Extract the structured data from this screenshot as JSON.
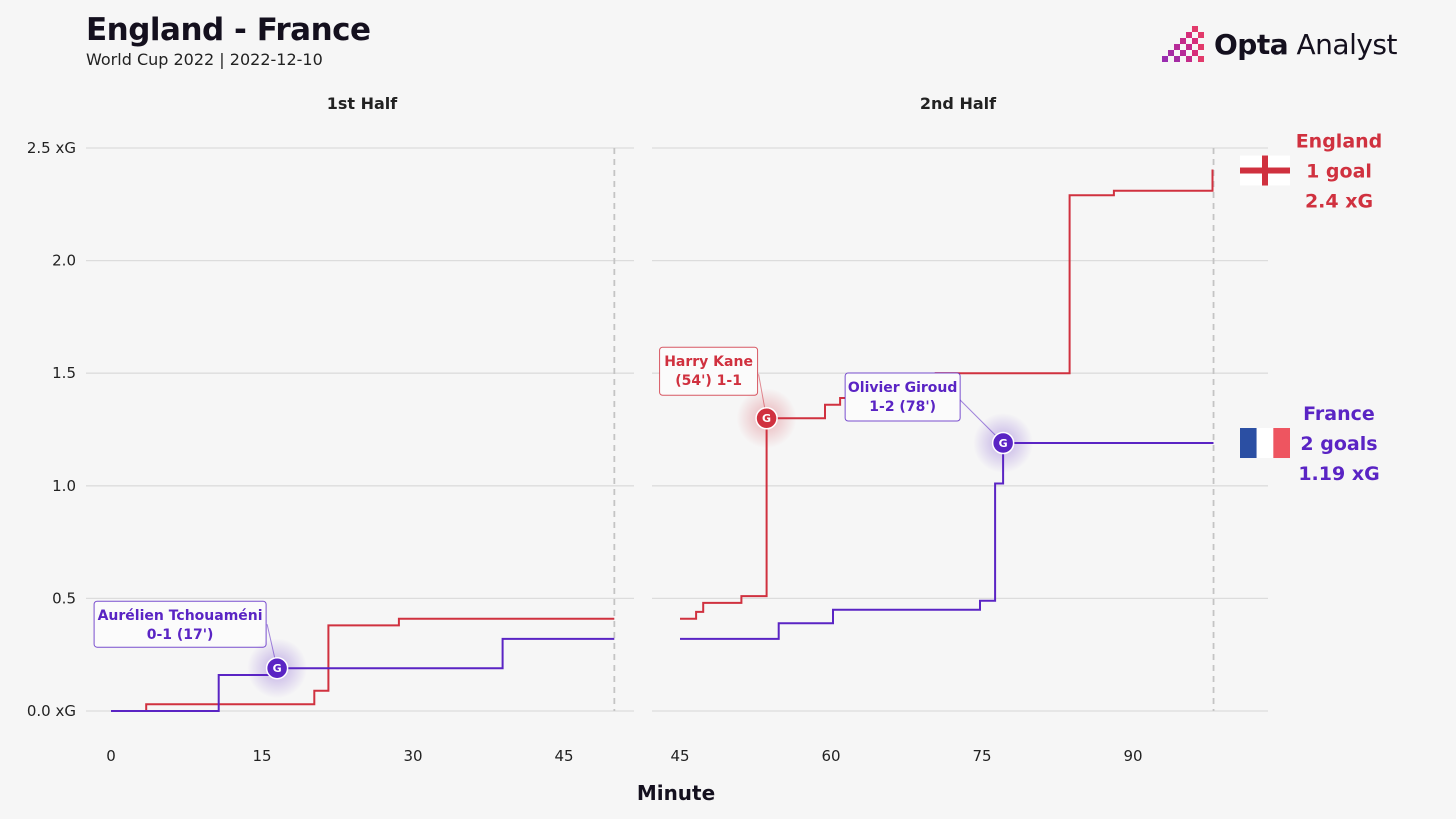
{
  "header": {
    "title": "England - France",
    "subtitle": "World Cup 2022 | 2022-12-10",
    "brand_bold": "Opta",
    "brand_light": " Analyst"
  },
  "colors": {
    "england": "#d0313f",
    "france": "#5a24c4",
    "grid": "#dcdcdc",
    "flag_blue": "#2b4fa3",
    "flag_red": "#ee5560"
  },
  "chart_data": {
    "type": "line",
    "title": "England - France",
    "subtitle": "World Cup 2022 | 2022-12-10",
    "xlabel": "Minute",
    "ylabel": "",
    "ylim": [
      0,
      2.5
    ],
    "y_ticks": [
      {
        "value": 0,
        "label": "0.0 xG"
      },
      {
        "value": 0.5,
        "label": "0.5"
      },
      {
        "value": 1,
        "label": "1.0"
      },
      {
        "value": 1.5,
        "label": "1.5"
      },
      {
        "value": 2,
        "label": "2.0"
      },
      {
        "value": 2.5,
        "label": "2.5 xG"
      }
    ],
    "grid": true,
    "panels": [
      {
        "key": "first",
        "label": "1st Half",
        "xlim": [
          0,
          50
        ],
        "x_ticks": [
          0,
          15,
          30,
          45
        ],
        "end_minute": 50
      },
      {
        "key": "second",
        "label": "2nd Half",
        "xlim": [
          45,
          99
        ],
        "x_ticks": [
          45,
          60,
          75,
          90
        ],
        "end_minute": 98
      }
    ],
    "series": [
      {
        "name": "England",
        "team": "england",
        "goals_label": "1 goal",
        "xg_label": "2.4 xG",
        "first": [
          [
            0,
            0
          ],
          [
            3.5,
            0
          ],
          [
            3.5,
            0.03
          ],
          [
            20.2,
            0.03
          ],
          [
            20.2,
            0.09
          ],
          [
            21.6,
            0.09
          ],
          [
            21.6,
            0.38
          ],
          [
            28.6,
            0.38
          ],
          [
            28.6,
            0.41
          ],
          [
            50,
            0.41
          ]
        ],
        "second": [
          [
            45,
            0.41
          ],
          [
            46.6,
            0.41
          ],
          [
            46.6,
            0.44
          ],
          [
            47.3,
            0.44
          ],
          [
            47.3,
            0.48
          ],
          [
            51.1,
            0.48
          ],
          [
            51.1,
            0.51
          ],
          [
            53.6,
            0.51
          ],
          [
            53.6,
            1.3
          ],
          [
            54.1,
            1.3
          ],
          [
            54.1,
            1.3
          ],
          [
            59.4,
            1.3
          ],
          [
            59.4,
            1.36
          ],
          [
            60.9,
            1.36
          ],
          [
            60.9,
            1.39
          ],
          [
            70.4,
            1.39
          ],
          [
            70.4,
            1.5
          ],
          [
            83.7,
            1.5
          ],
          [
            83.7,
            2.29
          ],
          [
            88.1,
            2.29
          ],
          [
            88.1,
            2.31
          ],
          [
            97.9,
            2.31
          ],
          [
            97.9,
            2.4
          ],
          [
            98,
            2.4
          ]
        ]
      },
      {
        "name": "France",
        "team": "france",
        "goals_label": "2 goals",
        "xg_label": "1.19 xG",
        "first": [
          [
            0,
            0
          ],
          [
            10.7,
            0
          ],
          [
            10.7,
            0.16
          ],
          [
            16.5,
            0.16
          ],
          [
            16.5,
            0.19
          ],
          [
            38.9,
            0.19
          ],
          [
            38.9,
            0.32
          ],
          [
            50,
            0.32
          ]
        ],
        "second": [
          [
            45,
            0.32
          ],
          [
            54.8,
            0.32
          ],
          [
            54.8,
            0.39
          ],
          [
            60.2,
            0.39
          ],
          [
            60.2,
            0.45
          ],
          [
            74.8,
            0.45
          ],
          [
            74.8,
            0.49
          ],
          [
            76.3,
            0.49
          ],
          [
            76.3,
            1.01
          ],
          [
            77.1,
            1.01
          ],
          [
            77.1,
            1.19
          ],
          [
            98,
            1.19
          ]
        ]
      }
    ],
    "goals": [
      {
        "team": "france",
        "panel": "first",
        "minute": 16.5,
        "xg": 0.19,
        "marker": "G",
        "label_line1": "Aurélien Tchouaméni",
        "label_line2": "0-1 (17')"
      },
      {
        "team": "england",
        "panel": "second",
        "minute": 53.6,
        "xg": 1.3,
        "marker": "G",
        "label_line1": "Harry Kane",
        "label_line2": "(54') 1-1"
      },
      {
        "team": "france",
        "panel": "second",
        "minute": 77.1,
        "xg": 1.19,
        "marker": "G",
        "label_line1": "Olivier Giroud",
        "label_line2": "1-2 (78')"
      }
    ]
  }
}
